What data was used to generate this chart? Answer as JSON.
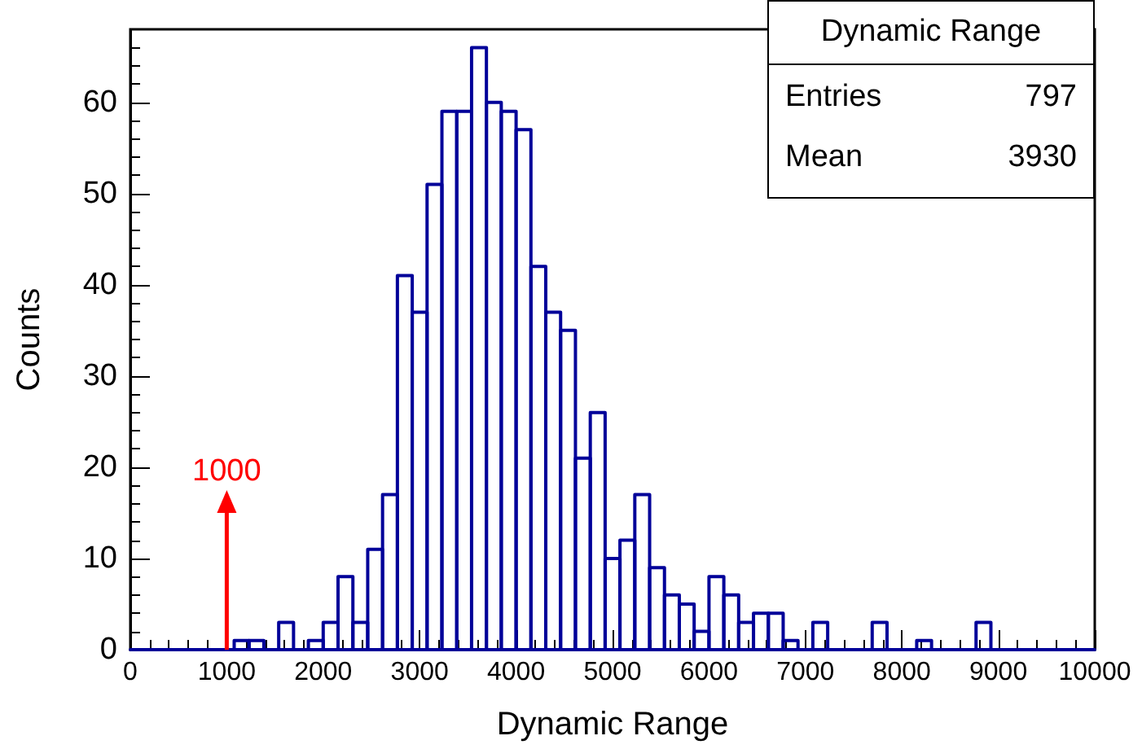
{
  "chart_data": {
    "type": "histogram",
    "xlabel": "Dynamic Range",
    "ylabel": "Counts",
    "bins": [
      0,
      153.8,
      307.7,
      461.5,
      615.4,
      769.2,
      923.1,
      1076.9,
      1230.8,
      1384.6,
      1538.5,
      1692.3,
      1846.2,
      2000,
      2153.8,
      2307.7,
      2461.5,
      2615.4,
      2769.2,
      2923.1,
      3076.9,
      3230.8,
      3384.6,
      3538.5,
      3692.3,
      3846.2,
      4000,
      4153.8,
      4307.7,
      4461.5,
      4615.4,
      4769.2,
      4923.1,
      5076.9,
      5230.8,
      5384.6,
      5538.5,
      5692.3,
      5846.2,
      6000,
      6153.8,
      6307.7,
      6461.5,
      6615.4,
      6769.2,
      6923.1,
      7076.9,
      7230.8,
      7384.6,
      7538.5,
      7692.3,
      7846.2,
      8000,
      8153.8,
      8307.7,
      8461.5,
      8615.4,
      8769.2,
      8923.1,
      9076.9,
      9230.8,
      9384.6,
      9538.5,
      9692.3,
      9846.2,
      10000
    ],
    "values": [
      0,
      0,
      0,
      0,
      0,
      0,
      0,
      1,
      1,
      0,
      3,
      0,
      1,
      3,
      8,
      3,
      11,
      17,
      41,
      37,
      51,
      59,
      59,
      66,
      60,
      59,
      57,
      42,
      37,
      35,
      21,
      26,
      10,
      12,
      17,
      9,
      6,
      5,
      2,
      8,
      6,
      3,
      4,
      4,
      1,
      0,
      3,
      0,
      0,
      0,
      3,
      0,
      0,
      1,
      0,
      0,
      0,
      3,
      0,
      0,
      0,
      0,
      0,
      0,
      0
    ],
    "color": "#000099",
    "xlim": [
      0,
      10000
    ],
    "xticks": [
      0,
      1000,
      2000,
      3000,
      4000,
      5000,
      6000,
      7000,
      8000,
      9000,
      10000
    ],
    "ylim": [
      0,
      68
    ],
    "yticks": [
      0,
      10,
      20,
      30,
      40,
      50,
      60
    ],
    "grid": false,
    "ref_lines": [
      {
        "axis": "x",
        "value": 1000,
        "label": "1000",
        "color": "#ff0000"
      }
    ],
    "annotations": [
      "Dynamic Range",
      "Entries",
      "797",
      "Mean",
      "3930"
    ]
  }
}
